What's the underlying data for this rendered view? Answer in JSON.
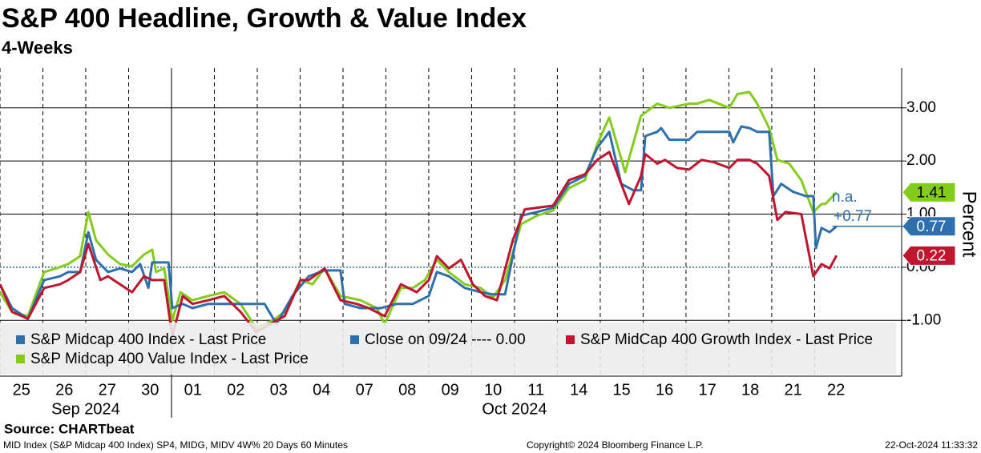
{
  "chart_data": {
    "type": "line",
    "title": "S&P 400 Headline, Growth & Value Index",
    "subtitle": "4-Weeks",
    "y_axis_label": "Percent",
    "source": "Source: CHARTbeat",
    "footer_left": "MID Index (S&P Midcap 400 Index) SP4, MIDG, MIDV 4W% 20 Days 60 Minutes",
    "footer_center": "Copyright© 2024 Bloomberg Finance L.P.",
    "footer_right": "22-Oct-2024 11:33:32",
    "xlim": [
      0,
      21.03
    ],
    "xticks": [
      {
        "value": 0.5,
        "label": "25"
      },
      {
        "value": 1.5,
        "label": "26"
      },
      {
        "value": 2.5,
        "label": "27"
      },
      {
        "value": 3.5,
        "label": "30"
      },
      {
        "value": 4.5,
        "label": "01"
      },
      {
        "value": 5.5,
        "label": "02"
      },
      {
        "value": 6.5,
        "label": "03"
      },
      {
        "value": 7.5,
        "label": "04"
      },
      {
        "value": 8.5,
        "label": "07"
      },
      {
        "value": 9.5,
        "label": "08"
      },
      {
        "value": 10.5,
        "label": "09"
      },
      {
        "value": 11.5,
        "label": "10"
      },
      {
        "value": 12.5,
        "label": "11"
      },
      {
        "value": 13.5,
        "label": "14"
      },
      {
        "value": 14.5,
        "label": "15"
      },
      {
        "value": 15.5,
        "label": "16"
      },
      {
        "value": 16.5,
        "label": "17"
      },
      {
        "value": 17.5,
        "label": "18"
      },
      {
        "value": 18.5,
        "label": "21"
      },
      {
        "value": 19.5,
        "label": "22"
      }
    ],
    "x_groups": [
      "Sep 2024",
      "Oct 2024"
    ],
    "ylim": [
      -2.05,
      3.75
    ],
    "yticks": [
      {
        "value": 3,
        "label": "3.00"
      },
      {
        "value": 2,
        "label": "2.00"
      },
      {
        "value": 1,
        "label": "1.00"
      },
      {
        "value": 0,
        "label": "0.00"
      },
      {
        "value": -1,
        "label": "-1.00"
      }
    ],
    "grid": true,
    "reference_line": {
      "name": "Close on 09/24 ---- 0.00",
      "value": 0,
      "color": "#2e6fad"
    },
    "annotations": [
      "n.a.",
      "+0.77"
    ],
    "series": [
      {
        "name": "S&P Midcap 400 Index - Last Price",
        "color": "#2e6fad",
        "last_value_label": "0.77",
        "x": [
          0,
          0.28,
          0.65,
          1.03,
          1.4,
          1.59,
          1.87,
          2.06,
          2.24,
          2.52,
          2.8,
          3.08,
          3.27,
          3.46,
          3.55,
          3.93,
          4.02,
          4.26,
          4.49,
          4.86,
          5.14,
          5.61,
          6.17,
          6.45,
          6.82,
          7.2,
          7.57,
          7.94,
          8.04,
          8.41,
          8.88,
          9.25,
          9.63,
          10,
          10.19,
          10.47,
          10.84,
          11.21,
          11.5,
          11.78,
          12.15,
          12.52,
          12.9,
          13.27,
          13.64,
          13.93,
          14.21,
          14.49,
          14.77,
          14.95,
          15.05,
          15.33,
          15.42,
          15.61,
          16.07,
          16.26,
          16.54,
          17.01,
          17.1,
          17.29,
          17.48,
          17.66,
          17.94,
          18.04,
          18.22,
          18.5,
          18.79,
          18.97,
          19.03,
          19.16,
          19.35,
          19.51
        ],
        "values": [
          -0.32,
          -0.77,
          -0.97,
          -0.24,
          -0.17,
          -0.09,
          -0.09,
          0.66,
          0.14,
          -0.09,
          -0.02,
          -0.09,
          0.06,
          -0.39,
          0.09,
          0.09,
          -0.77,
          -0.69,
          -0.77,
          -0.69,
          -0.69,
          -0.69,
          -0.69,
          -1.07,
          -0.54,
          -0.17,
          -0.06,
          -0.06,
          -0.69,
          -0.77,
          -0.77,
          -0.69,
          -0.69,
          -0.54,
          -0.09,
          -0.17,
          -0.39,
          -0.47,
          -0.51,
          -0.51,
          0.97,
          1.04,
          1.12,
          1.57,
          1.72,
          2.25,
          2.55,
          1.57,
          1.45,
          1.45,
          2.47,
          2.55,
          2.62,
          2.4,
          2.4,
          2.55,
          2.55,
          2.55,
          2.35,
          2.65,
          2.62,
          2.55,
          2.55,
          1.34,
          1.57,
          1.42,
          1.34,
          1.34,
          0.36,
          0.74,
          0.66,
          0.77
        ]
      },
      {
        "name": "S&P MidCap 400 Growth Index - Last Price",
        "color": "#c0152f",
        "last_value_label": "0.22",
        "x": [
          0,
          0.28,
          0.65,
          1.03,
          1.4,
          1.59,
          1.87,
          2.06,
          2.34,
          2.52,
          2.8,
          3.08,
          3.36,
          3.55,
          3.83,
          4.02,
          4.26,
          4.49,
          4.86,
          5.23,
          5.61,
          5.98,
          6.45,
          6.64,
          7.01,
          7.2,
          7.57,
          7.94,
          8.32,
          8.6,
          8.97,
          9.35,
          9.72,
          10,
          10.19,
          10.47,
          10.75,
          11.03,
          11.31,
          11.59,
          11.96,
          12.24,
          12.52,
          12.9,
          13.27,
          13.64,
          13.93,
          14.21,
          14.49,
          14.67,
          14.95,
          15.05,
          15.33,
          15.51,
          15.79,
          16.07,
          16.36,
          16.64,
          17.01,
          17.2,
          17.48,
          17.66,
          17.94,
          18.13,
          18.32,
          18.69,
          18.97,
          19.16,
          19.35,
          19.51
        ],
        "values": [
          -0.32,
          -0.84,
          -0.97,
          -0.39,
          -0.32,
          -0.24,
          -0.09,
          0.44,
          -0.24,
          -0.17,
          -0.32,
          -0.47,
          -0.17,
          -0.24,
          -0.24,
          -1.3,
          -0.54,
          -0.69,
          -0.62,
          -0.54,
          -0.84,
          -1.22,
          -1,
          -0.92,
          -0.24,
          -0.24,
          -0.02,
          -0.62,
          -0.69,
          -0.77,
          -0.92,
          -0.32,
          -0.47,
          -0.24,
          0.21,
          -0.02,
          0.14,
          -0.32,
          -0.54,
          -0.62,
          0.51,
          1.09,
          1.12,
          1.16,
          1.64,
          1.75,
          2.02,
          2.17,
          1.57,
          1.19,
          1.72,
          2.13,
          1.95,
          2.02,
          1.87,
          1.84,
          2.02,
          1.98,
          1.87,
          2.02,
          2.02,
          1.95,
          1.72,
          0.89,
          1.04,
          1,
          -0.17,
          0.06,
          -0.02,
          0.22
        ]
      },
      {
        "name": "S&P Midcap 400 Value Index - Last Price",
        "color": "#84cc1c",
        "last_value_label": "1.41",
        "x": [
          0,
          0.28,
          0.65,
          1.03,
          1.31,
          1.59,
          1.87,
          2.06,
          2.24,
          2.52,
          2.8,
          3.08,
          3.36,
          3.55,
          3.64,
          3.83,
          4.02,
          4.21,
          4.49,
          4.86,
          5.23,
          5.61,
          5.98,
          6.36,
          6.64,
          7.01,
          7.29,
          7.57,
          7.94,
          8.41,
          8.79,
          8.97,
          9.35,
          9.63,
          9.91,
          10.19,
          10.47,
          10.84,
          11.21,
          11.5,
          11.78,
          12.15,
          12.52,
          12.9,
          13.27,
          13.64,
          13.93,
          14.21,
          14.58,
          14.95,
          15.33,
          15.61,
          16.07,
          16.26,
          16.54,
          17.01,
          17.2,
          17.48,
          17.66,
          17.94,
          18.13,
          18.41,
          18.69,
          18.97,
          19.16,
          19.25,
          19.51
        ],
        "values": [
          -0.47,
          -0.84,
          -0.92,
          -0.09,
          -0.02,
          0.06,
          0.21,
          1.04,
          0.51,
          0.24,
          0.06,
          0.02,
          0.24,
          0.33,
          -0.09,
          -0.02,
          -1,
          -0.47,
          -0.62,
          -0.54,
          -0.47,
          -0.69,
          -1.15,
          -1,
          -0.84,
          -0.24,
          -0.32,
          -0.02,
          -0.54,
          -0.62,
          -0.77,
          -1.07,
          -0.39,
          -0.39,
          -0.24,
          0.14,
          -0.09,
          -0.32,
          -0.39,
          -0.57,
          -0.24,
          0.81,
          0.97,
          1.07,
          1.49,
          1.64,
          2.32,
          2.82,
          1.79,
          2.85,
          3.08,
          3,
          3.08,
          3.08,
          3.15,
          3,
          3.26,
          3.3,
          3.08,
          2.62,
          2.02,
          1.95,
          1.64,
          1.04,
          1.19,
          1.19,
          1.41
        ]
      }
    ]
  }
}
